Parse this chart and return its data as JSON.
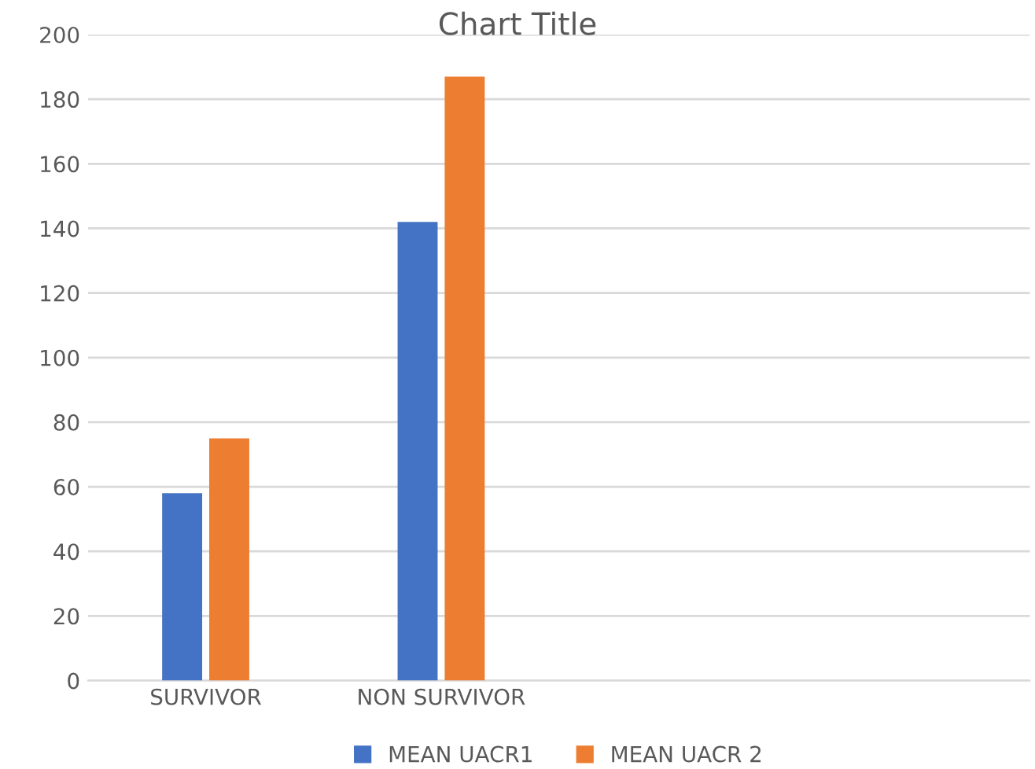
{
  "chart_data": {
    "type": "bar",
    "title": "Chart Title",
    "categories": [
      "SURVIVOR",
      "NON SURVIVOR",
      null,
      null
    ],
    "series": [
      {
        "name": "MEAN UACR1",
        "color": "#4472c4",
        "values": [
          58,
          142,
          null,
          null
        ]
      },
      {
        "name": "MEAN UACR 2",
        "color": "#ed7d31",
        "values": [
          75,
          187,
          null,
          null
        ]
      }
    ],
    "ylim": [
      0,
      200
    ],
    "yticks": [
      0,
      20,
      40,
      60,
      80,
      100,
      120,
      140,
      160,
      180,
      200
    ],
    "grid": "y",
    "legend": "bottom"
  }
}
